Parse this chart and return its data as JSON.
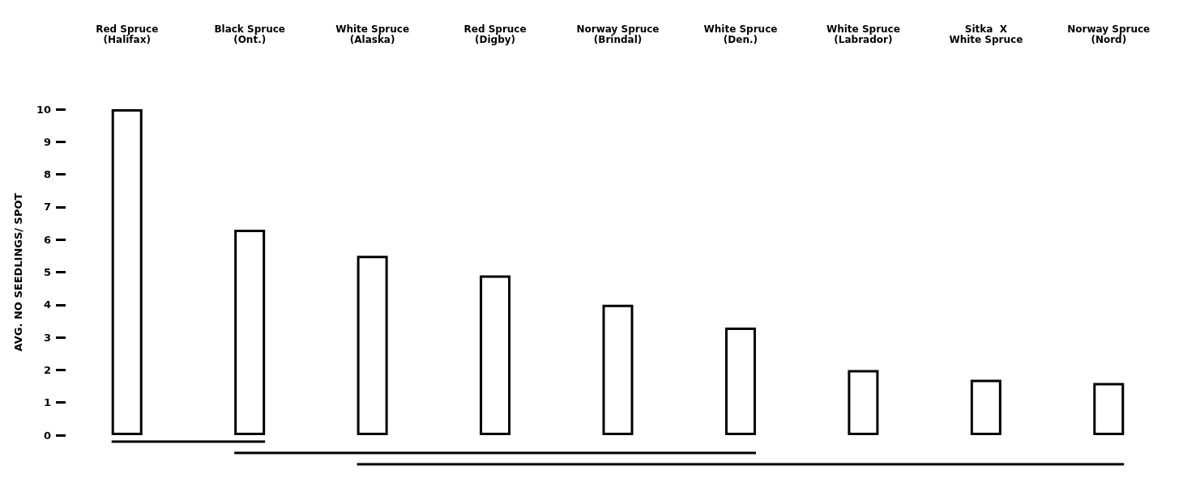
{
  "chart_data": {
    "type": "bar",
    "ylabel": "AVG. NO SEEDLINGS/ SPOT",
    "categories": [
      "Red Spruce\n(Halifax)",
      "Black Spruce\n(Ont.)",
      "White Spruce\n(Alaska)",
      "Red Spruce\n(Digby)",
      "Norway Spruce\n(Brindal)",
      "White Spruce\n(Den.)",
      "White Spruce\n(Labrador)",
      "Sitka  X\nWhite Spruce",
      "Norway Spruce\n(Nord)"
    ],
    "values": [
      10.0,
      6.3,
      5.5,
      4.9,
      4.0,
      3.3,
      2.0,
      1.7,
      1.6
    ],
    "color": "#ffffff",
    "ylim": [
      0,
      10
    ],
    "yticks": [
      0,
      1,
      2,
      3,
      4,
      5,
      6,
      7,
      8,
      9,
      10
    ],
    "grid": false
  }
}
